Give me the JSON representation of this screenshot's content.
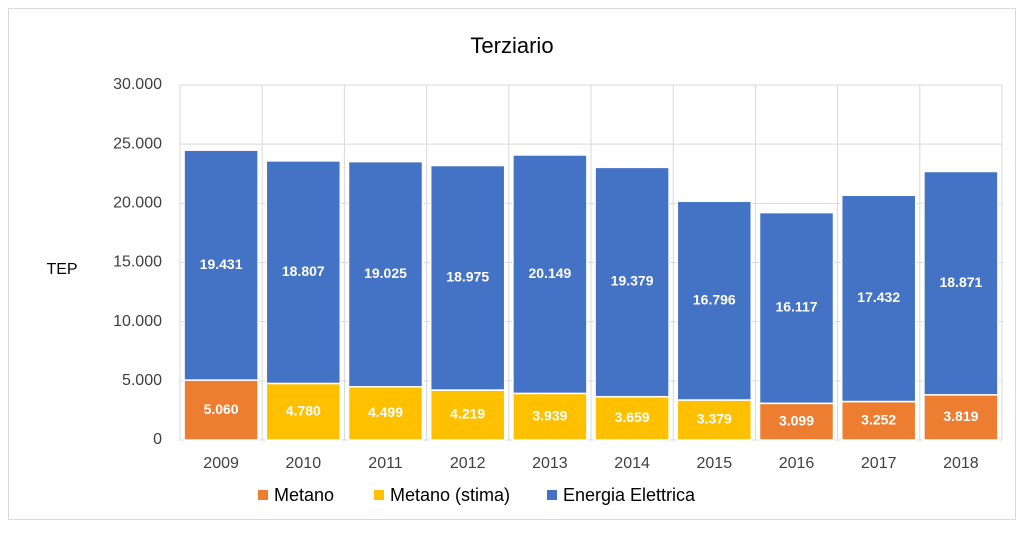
{
  "chart_data": {
    "type": "stacked_bar",
    "title": "Terziario",
    "y_label": "TEP",
    "categories": [
      "2009",
      "2010",
      "2011",
      "2012",
      "2013",
      "2014",
      "2015",
      "2016",
      "2017",
      "2018"
    ],
    "series": [
      {
        "name": "Metano",
        "color": "#ed7d31",
        "values": [
          5060,
          null,
          null,
          null,
          null,
          null,
          null,
          3099,
          3252,
          3819
        ],
        "value_labels": [
          "5.060",
          null,
          null,
          null,
          null,
          null,
          null,
          "3.099",
          "3.252",
          "3.819"
        ]
      },
      {
        "name": "Metano (stima)",
        "color": "#ffc000",
        "values": [
          null,
          4780,
          4499,
          4219,
          3939,
          3659,
          3379,
          null,
          null,
          null
        ],
        "value_labels": [
          null,
          "4.780",
          "4.499",
          "4.219",
          "3.939",
          "3.659",
          "3.379",
          null,
          null,
          null
        ]
      },
      {
        "name": "Energia Elettrica",
        "color": "#4472c4",
        "values": [
          19431,
          18807,
          19025,
          18975,
          20149,
          19379,
          16796,
          16117,
          17432,
          18871
        ],
        "value_labels": [
          "19.431",
          "18.807",
          "19.025",
          "18.975",
          "20.149",
          "19.379",
          "16.796",
          "16.117",
          "17.432",
          "18.871"
        ]
      }
    ],
    "ylim": [
      0,
      30000
    ],
    "yticks": [
      0,
      {
        "value": 5000,
        "label": "5.000"
      },
      {
        "value": 10000,
        "label": "10.000"
      },
      {
        "value": 15000,
        "label": "15.000"
      },
      {
        "value": 20000,
        "label": "20.000"
      },
      {
        "value": 25000,
        "label": "25.000"
      },
      {
        "value": 30000,
        "label": "30.000"
      }
    ],
    "grid": true,
    "legend": "bottom"
  }
}
